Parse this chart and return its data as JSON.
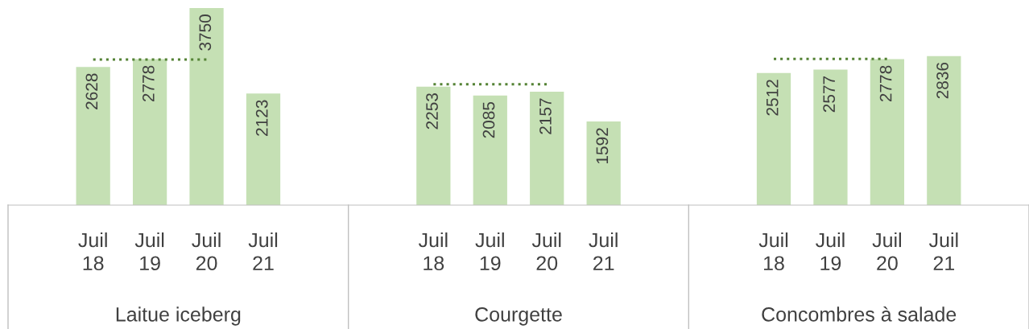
{
  "chart_data": {
    "type": "bar",
    "categories": [
      "Juil\n18",
      "Juil\n19",
      "Juil\n20",
      "Juil\n21",
      null,
      null,
      "Juil\n18",
      "Juil\n19",
      "Juil\n20",
      "Juil\n21",
      null,
      null,
      "Juil\n18",
      "Juil\n19",
      "Juil\n20",
      "Juil\n21"
    ],
    "series": [
      {
        "color": "#c5e0b4",
        "values": [
          2628,
          2778,
          3750,
          2123,
          null,
          null,
          2253,
          2085,
          2157,
          1592,
          null,
          null,
          2512,
          2577,
          2778,
          2836
        ],
        "value_labels": [
          "2628",
          "2778",
          "3750",
          "2123",
          null,
          null,
          "2253",
          "2085",
          "2157",
          "1592",
          null,
          null,
          "2512",
          "2577",
          "2778",
          "2836"
        ]
      },
      {
        "type": "line",
        "color": "#548235",
        "line_style": "dotted",
        "values": [
          2770,
          2770,
          2770,
          null,
          null,
          null,
          null,
          null,
          null,
          null,
          null,
          null,
          null,
          null,
          null,
          null
        ]
      },
      {
        "type": "line",
        "color": "#548235",
        "line_style": "dotted",
        "values": [
          null,
          null,
          null,
          null,
          null,
          null,
          2300,
          2300,
          2300,
          null,
          null,
          null,
          null,
          null,
          null,
          null
        ]
      },
      {
        "type": "line",
        "color": "#548235",
        "line_style": "dotted",
        "values": [
          null,
          null,
          null,
          null,
          null,
          null,
          null,
          null,
          null,
          null,
          null,
          null,
          2780,
          2780,
          2780,
          null
        ]
      }
    ],
    "annotations": [
      "Laitue iceberg",
      "Courgette",
      "Concombres à salade"
    ]
  }
}
